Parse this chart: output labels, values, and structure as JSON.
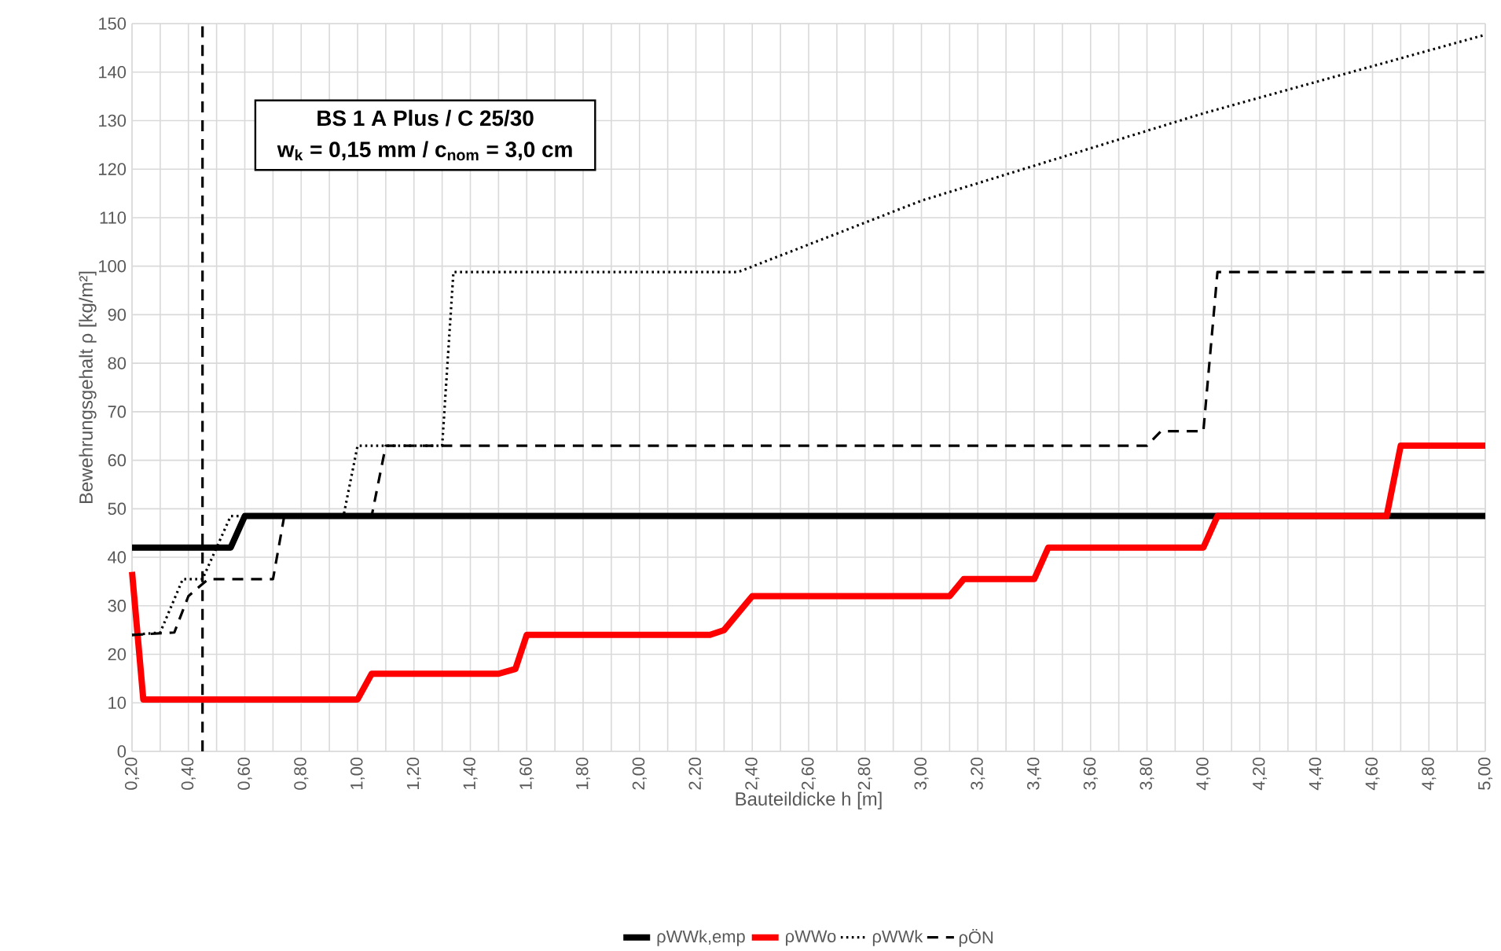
{
  "chart_data": {
    "type": "line",
    "xlabel": "Bauteildicke h [m]",
    "ylabel": "Bewehrungsgehalt ρ [kg/m²]",
    "annotations": [
      "**BS 1 A Plus / C 25/30**",
      "**w$_{k}$ = 0,15 mm / c$_{nom}$ = 3,0 cm**"
    ],
    "xlim": [
      0.2,
      5.0
    ],
    "ylim": [
      0,
      150
    ],
    "xticks": [
      {
        "value": 0.2,
        "label": "0,20"
      },
      {
        "value": 0.4,
        "label": "0,40"
      },
      {
        "value": 0.6,
        "label": "0,60"
      },
      {
        "value": 0.8,
        "label": "0,80"
      },
      {
        "value": 1.0,
        "label": "1,00"
      },
      {
        "value": 1.2,
        "label": "1,20"
      },
      {
        "value": 1.4,
        "label": "1,40"
      },
      {
        "value": 1.6,
        "label": "1,60"
      },
      {
        "value": 1.8,
        "label": "1,80"
      },
      {
        "value": 2.0,
        "label": "2,00"
      },
      {
        "value": 2.2,
        "label": "2,20"
      },
      {
        "value": 2.4,
        "label": "2,40"
      },
      {
        "value": 2.6,
        "label": "2,60"
      },
      {
        "value": 2.8,
        "label": "2,80"
      },
      {
        "value": 3.0,
        "label": "3,00"
      },
      {
        "value": 3.2,
        "label": "3,20"
      },
      {
        "value": 3.4,
        "label": "3,40"
      },
      {
        "value": 3.6,
        "label": "3,60"
      },
      {
        "value": 3.8,
        "label": "3,80"
      },
      {
        "value": 4.0,
        "label": "4,00"
      },
      {
        "value": 4.2,
        "label": "4,20"
      },
      {
        "value": 4.4,
        "label": "4,40"
      },
      {
        "value": 4.6,
        "label": "4,60"
      },
      {
        "value": 4.8,
        "label": "4,80"
      },
      {
        "value": 5.0,
        "label": "5,00"
      }
    ],
    "yticks": [
      0,
      10,
      20,
      30,
      40,
      50,
      60,
      70,
      80,
      90,
      100,
      110,
      120,
      130,
      140,
      150
    ],
    "grid": true,
    "legend": "bottom",
    "marker": "none",
    "ref_lines": [
      {
        "axis": "x",
        "value": 0.45,
        "color": "#000000",
        "line_style": "dashed"
      }
    ],
    "series": [
      {
        "name": "ρWWk,emp",
        "color": "#000000",
        "line_style": "solid",
        "x": [
          0.2,
          0.55,
          0.6,
          5.0
        ],
        "values": [
          42,
          42,
          48.5,
          48.5
        ]
      },
      {
        "name": "ρWWo",
        "color": "#ff0000",
        "line_style": "solid",
        "x": [
          0.2,
          0.24,
          1.0,
          1.05,
          1.5,
          1.56,
          1.6,
          2.25,
          2.3,
          2.4,
          3.1,
          3.15,
          3.4,
          3.45,
          4.0,
          4.05,
          4.65,
          4.7,
          5.0
        ],
        "values": [
          37,
          10.7,
          10.7,
          16,
          16,
          17,
          24,
          24,
          25,
          32,
          32,
          35.5,
          35.5,
          42,
          42,
          48.5,
          48.5,
          63,
          63
        ]
      },
      {
        "name": "ρWWk",
        "color": "#000000",
        "line_style": "dotted",
        "x": [
          0.2,
          0.3,
          0.38,
          0.45,
          0.55,
          0.95,
          1.0,
          1.3,
          1.34,
          2.35,
          3.0,
          4.0,
          5.0
        ],
        "values": [
          24,
          24.5,
          35.5,
          35.5,
          48.5,
          48.5,
          63,
          63,
          98.8,
          98.8,
          113.5,
          131.5,
          147.7
        ]
      },
      {
        "name": "ρÖN",
        "color": "#000000",
        "line_style": "dashed",
        "x": [
          0.2,
          0.35,
          0.4,
          0.47,
          0.7,
          0.74,
          1.05,
          1.1,
          3.8,
          3.85,
          4.0,
          4.05,
          5.0
        ],
        "values": [
          24,
          24.5,
          32,
          35.5,
          35.5,
          48.5,
          48.5,
          63,
          63,
          66,
          66,
          98.8,
          98.8
        ]
      }
    ]
  }
}
